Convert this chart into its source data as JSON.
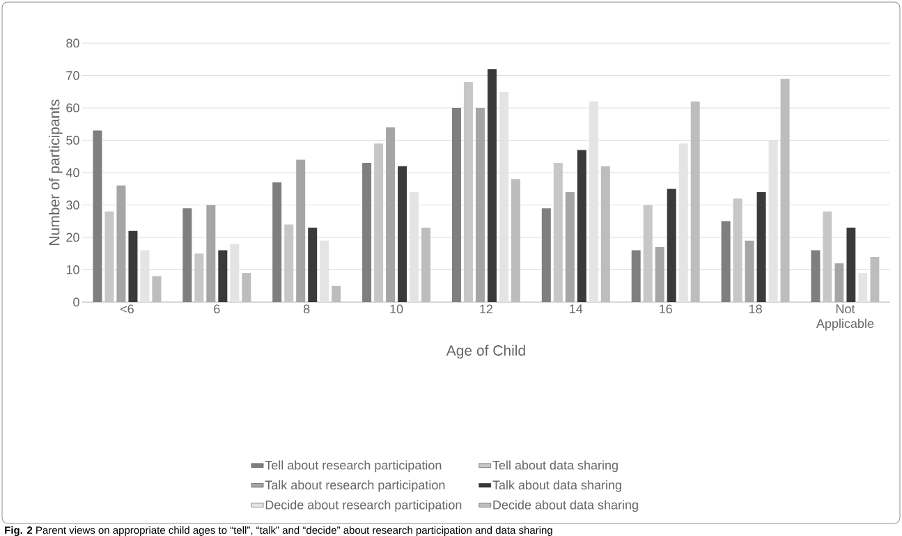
{
  "chart_data": {
    "type": "bar",
    "xlabel": "Age of Child",
    "ylabel": "Number of participants",
    "categories": [
      "<6",
      "6",
      "8",
      "10",
      "12",
      "14",
      "16",
      "18",
      "Not Applicable"
    ],
    "series": [
      {
        "name": "Tell about research participation",
        "color": "#7f7f7f",
        "values": [
          53,
          29,
          37,
          43,
          60,
          29,
          16,
          25,
          16
        ]
      },
      {
        "name": "Tell about data sharing",
        "color": "#c6c7c6",
        "values": [
          28,
          15,
          24,
          49,
          68,
          43,
          30,
          32,
          28
        ]
      },
      {
        "name": "Talk about research participation",
        "color": "#a5a5a5",
        "values": [
          36,
          30,
          44,
          54,
          60,
          34,
          17,
          19,
          12
        ]
      },
      {
        "name": "Talk about data sharing",
        "color": "#3a3a38",
        "values": [
          22,
          16,
          23,
          42,
          72,
          47,
          35,
          34,
          23
        ]
      },
      {
        "name": "Decide about research participation",
        "color": "#e3e4e3",
        "values": [
          16,
          18,
          19,
          34,
          65,
          62,
          49,
          50,
          9
        ]
      },
      {
        "name": "Decide about data sharing",
        "color": "#bcbdbc",
        "values": [
          8,
          9,
          5,
          23,
          38,
          42,
          62,
          69,
          14
        ]
      }
    ],
    "ylim": [
      0,
      80
    ],
    "yticks": [
      0,
      10,
      20,
      30,
      40,
      50,
      60,
      70,
      80
    ],
    "grid": "y",
    "legend": "bottom",
    "annotations": [
      "**Fig. 2** Parent views on appropriate child ages to “tell”, “talk” and “decide” about research participation and data sharing"
    ]
  }
}
